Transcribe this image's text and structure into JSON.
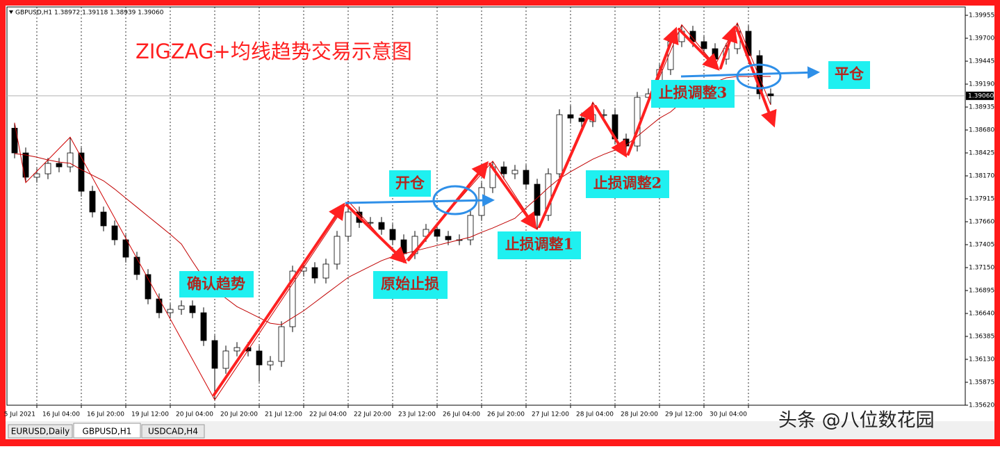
{
  "header": "GBPUSD,H1  1.38972 1.39118 1.38939 1.39060",
  "tabs": [
    "EURUSD,Daily",
    "GBPUSD,H1",
    "USDCAD,H4"
  ],
  "watermark": "头条 @八位数花园",
  "chart_data": {
    "type": "candlestick",
    "title": "ZIGZAG+均线趋势交易示意图",
    "annotations": [
      "确认趋势",
      "原始止损",
      "开仓",
      "止损调整1",
      "止损调整2",
      "止损调整3",
      "平仓"
    ],
    "categories": [
      null,
      null,
      "5 Jul 2021",
      null,
      null,
      null,
      "16 Jul 04:00",
      null,
      null,
      null,
      "16 Jul 20:00",
      null,
      null,
      null,
      "19 Jul 12:00",
      null,
      null,
      null,
      "20 Jul 04:00",
      null,
      null,
      null,
      "20 Jul 20:00",
      null,
      null,
      null,
      "21 Jul 12:00",
      null,
      null,
      null,
      "22 Jul 04:00",
      null,
      null,
      null,
      "22 Jul 20:00",
      null,
      null,
      null,
      "23 Jul 12:00",
      null,
      null,
      null,
      "26 Jul 04:00",
      null,
      null,
      null,
      "26 Jul 20:00",
      null,
      null,
      null,
      "27 Jul 12:00",
      null,
      null,
      null,
      "28 Jul 04:00",
      null,
      null,
      null,
      "28 Jul 20:00",
      null,
      null,
      null,
      "29 Jul 12:00",
      null,
      null,
      null,
      "30 Jul 04:00",
      null,
      null
    ],
    "open": [
      1.387,
      1.38425,
      1.38155,
      1.38193,
      1.38309,
      1.3827,
      1.38425,
      1.37999,
      1.37768,
      1.37614,
      1.37459,
      1.37266,
      1.37073,
      1.36802,
      1.36648,
      1.36686,
      1.36725,
      1.36648,
      1.36339,
      1.3603,
      1.36223,
      1.36261,
      1.36223,
      1.36068,
      1.36107,
      1.36493,
      1.37111,
      1.3715,
      1.37034,
      1.37189,
      1.37498,
      1.37768,
      1.37652,
      1.37652,
      1.37575,
      1.37459,
      1.37305,
      1.37498,
      1.37575,
      1.37498,
      1.37459,
      1.37459,
      1.3773,
      1.38039,
      1.3827,
      1.38193,
      1.38232,
      1.38077,
      1.3773,
      1.38193,
      1.3885,
      1.38812,
      1.38773,
      1.3885,
      1.3885,
      1.3858,
      1.38502,
      1.39043,
      1.39082,
      1.39352,
      1.39662,
      1.39778,
      1.39662,
      1.39584,
      1.39468,
      1.39584,
      1.39778,
      1.39507,
      1.39082
    ],
    "high": [
      1.3876,
      1.38485,
      1.38253,
      1.38369,
      1.38369,
      1.386,
      1.38485,
      1.38059,
      1.37828,
      1.37674,
      1.37519,
      1.37326,
      1.37133,
      1.36862,
      1.36746,
      1.36785,
      1.36785,
      1.36708,
      1.36399,
      1.36283,
      1.36321,
      1.36321,
      1.36283,
      1.36167,
      1.36553,
      1.37171,
      1.3721,
      1.3721,
      1.37249,
      1.37558,
      1.3789,
      1.37828,
      1.37712,
      1.37712,
      1.37635,
      1.37519,
      1.37558,
      1.37635,
      1.37635,
      1.37558,
      1.37519,
      1.3779,
      1.38099,
      1.38333,
      1.3833,
      1.38292,
      1.38292,
      1.38137,
      1.38253,
      1.3891,
      1.3895,
      1.38872,
      1.3899,
      1.3891,
      1.3891,
      1.3864,
      1.39103,
      1.39142,
      1.39412,
      1.39722,
      1.3985,
      1.39838,
      1.39722,
      1.39644,
      1.39644,
      1.3987,
      1.39838,
      1.39567,
      1.39142
    ],
    "low": [
      1.38365,
      1.38095,
      1.38095,
      1.38133,
      1.3821,
      1.3821,
      1.37939,
      1.37708,
      1.37554,
      1.37399,
      1.37206,
      1.37013,
      1.36742,
      1.36588,
      1.36588,
      1.36626,
      1.36588,
      1.36279,
      1.3568,
      1.3597,
      1.36163,
      1.36163,
      1.3588,
      1.36008,
      1.36047,
      1.36433,
      1.37051,
      1.36974,
      1.36974,
      1.37129,
      1.37438,
      1.37592,
      1.37592,
      1.37515,
      1.37399,
      1.37204,
      1.37245,
      1.37438,
      1.37438,
      1.37399,
      1.37399,
      1.37399,
      1.3767,
      1.37979,
      1.38133,
      1.38133,
      1.38017,
      1.37575,
      1.3767,
      1.38133,
      1.38752,
      1.38713,
      1.38713,
      1.3879,
      1.3852,
      1.3839,
      1.38442,
      1.38983,
      1.39022,
      1.39292,
      1.39602,
      1.39602,
      1.39524,
      1.394,
      1.39408,
      1.39524,
      1.39447,
      1.39022,
      1.3896
    ],
    "close": [
      1.38425,
      1.38155,
      1.38193,
      1.38309,
      1.3827,
      1.38425,
      1.37999,
      1.37768,
      1.37614,
      1.37459,
      1.37266,
      1.37073,
      1.36802,
      1.36648,
      1.36686,
      1.36725,
      1.36648,
      1.36339,
      1.3603,
      1.36223,
      1.36261,
      1.36223,
      1.36068,
      1.36107,
      1.36493,
      1.37111,
      1.3715,
      1.37034,
      1.37189,
      1.37498,
      1.37768,
      1.37652,
      1.37652,
      1.37575,
      1.37459,
      1.37305,
      1.37498,
      1.37575,
      1.37498,
      1.37459,
      1.37459,
      1.3773,
      1.38039,
      1.3827,
      1.38193,
      1.38232,
      1.38077,
      1.3773,
      1.38193,
      1.3885,
      1.38812,
      1.38773,
      1.3885,
      1.3885,
      1.3858,
      1.38502,
      1.39043,
      1.39082,
      1.39352,
      1.39662,
      1.39778,
      1.39662,
      1.39584,
      1.39468,
      1.39584,
      1.39778,
      1.39507,
      1.39082,
      1.3906
    ],
    "up_color": "#ffffff",
    "down_color": "#000000",
    "wick_color": "#000000",
    "moving_average": {
      "color": "#c00000",
      "values": [
        1.38417,
        1.38402,
        1.38378,
        1.38347,
        1.38324,
        1.38309,
        1.38239,
        1.38177,
        1.38115,
        1.38023,
        1.37922,
        1.37822,
        1.37721,
        1.37621,
        1.3752,
        1.37412,
        1.37219,
        1.37033,
        1.36902,
        1.36809,
        1.36716,
        1.36655,
        1.36593,
        1.36531,
        1.36515,
        1.36593,
        1.3667,
        1.36763,
        1.36856,
        1.36948,
        1.37041,
        1.37103,
        1.37165,
        1.37227,
        1.37273,
        1.37304,
        1.37335,
        1.37366,
        1.37397,
        1.37428,
        1.37458,
        1.37489,
        1.37543,
        1.3759,
        1.37644,
        1.37698,
        1.37814,
        1.37922,
        1.38038,
        1.38139,
        1.38216,
        1.38286,
        1.38355,
        1.38409,
        1.38456,
        1.3851,
        1.3861,
        1.38711,
        1.38811,
        1.38881,
        1.38989,
        1.39097,
        1.39159,
        1.39213,
        1.3926,
        1.39275,
        1.39275,
        1.39275,
        1.39275
      ]
    },
    "zigzag": {
      "color": "#d00000",
      "x": [
        0,
        1,
        5,
        18,
        30,
        35,
        43,
        47,
        52,
        55,
        60,
        63,
        65,
        68
      ],
      "values": [
        1.3876,
        1.38095,
        1.386,
        1.3568,
        1.3789,
        1.37204,
        1.38333,
        1.37575,
        1.3899,
        1.3839,
        1.3985,
        1.394,
        1.3987,
        1.3896
      ]
    },
    "current_price": {
      "value": 1.3906,
      "label": "1.39060"
    },
    "ylim": [
      1.3562,
      1.40048
    ],
    "yticks": [
      1.39955,
      {
        "value": 1.397,
        "label": "1.39700"
      },
      1.39445,
      {
        "value": 1.3919,
        "label": "1.39190"
      },
      1.38935,
      {
        "value": 1.3868,
        "label": "1.38680"
      },
      1.38425,
      {
        "value": 1.3817,
        "label": "1.38170"
      },
      1.37915,
      {
        "value": 1.3766,
        "label": "1.37660"
      },
      1.37405,
      {
        "value": 1.3715,
        "label": "1.37150"
      },
      1.36895,
      {
        "value": 1.3664,
        "label": "1.36640"
      },
      1.36385,
      {
        "value": 1.3613,
        "label": "1.36130"
      },
      1.35875,
      {
        "value": 1.3562,
        "label": "1.35620"
      }
    ],
    "grid": true
  }
}
